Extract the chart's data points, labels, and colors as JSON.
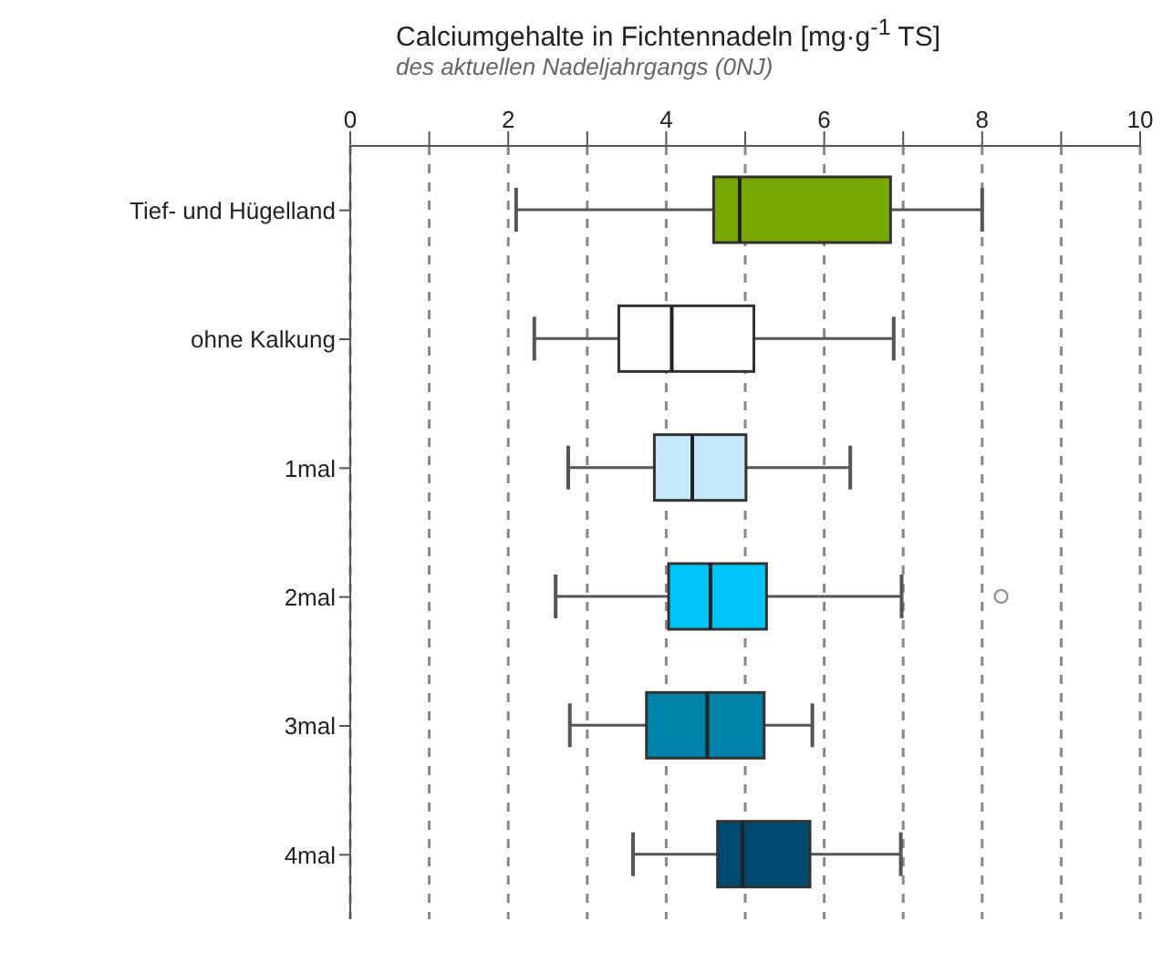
{
  "chart_data": {
    "type": "box",
    "orientation": "horizontal",
    "title": "Calciumgehalte in Fichtennadeln [mg·g$^{-1}$ TS]",
    "subtitle": "des aktuellen Nadeljahrgangs (0NJ)",
    "categories": [
      "Tief- und Hügelland",
      "ohne Kalkung",
      "1mal",
      "2mal",
      "3mal",
      "4mal"
    ],
    "colors": [
      "#76a800",
      "#ffffff",
      "#c5e9fb",
      "#00c5fb",
      "#0083a8",
      "#004a72"
    ],
    "boxes": [
      {
        "low": 2.1,
        "q1": 4.6,
        "median": 4.93,
        "q3": 6.84,
        "high": 8.0
      },
      {
        "low": 2.33,
        "q1": 3.4,
        "median": 4.07,
        "q3": 5.11,
        "high": 6.88
      },
      {
        "low": 2.76,
        "q1": 3.85,
        "median": 4.33,
        "q3": 5.01,
        "high": 6.33
      },
      {
        "low": 2.6,
        "q1": 4.03,
        "median": 4.56,
        "q3": 5.27,
        "high": 6.98,
        "outliers": [
          8.24
        ]
      },
      {
        "low": 2.78,
        "q1": 3.75,
        "median": 4.52,
        "q3": 5.24,
        "high": 5.85
      },
      {
        "low": 3.58,
        "q1": 4.65,
        "median": 4.97,
        "q3": 5.82,
        "high": 6.97
      }
    ],
    "xlim": [
      0,
      10
    ],
    "xticks": [
      0,
      {
        "value": 1,
        "label": null
      },
      2,
      {
        "value": 3,
        "label": null
      },
      4,
      {
        "value": 5,
        "label": null
      },
      6,
      {
        "value": 7,
        "label": null
      },
      8,
      {
        "value": 9,
        "label": null
      },
      10
    ],
    "grid": "x"
  }
}
